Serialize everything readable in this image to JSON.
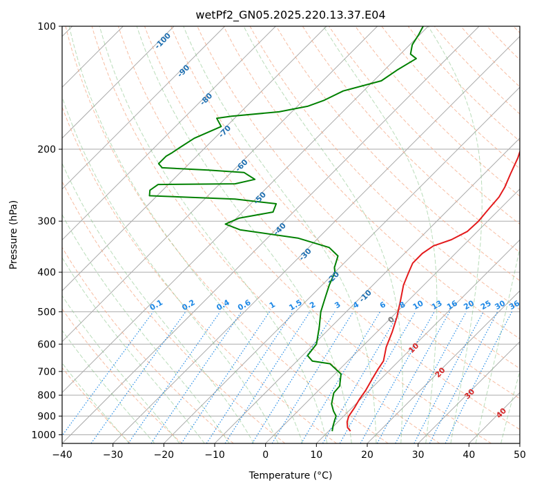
{
  "chart_data": {
    "type": "line",
    "subtype": "skew-t log-p diagram",
    "title": "wetPf2_GN05.2025.220.13.37.E04",
    "xlabel": "Temperature (°C)",
    "ylabel": "Pressure (hPa)",
    "xlim": [
      -40,
      50
    ],
    "ylim": [
      1050,
      100
    ],
    "y_scale": "log",
    "grid": true,
    "x_ticks": [
      -40,
      -30,
      -20,
      -10,
      0,
      10,
      20,
      30,
      40,
      50
    ],
    "y_ticks": [
      100,
      200,
      300,
      400,
      500,
      600,
      700,
      800,
      900,
      1000
    ],
    "x_tick_labels": [
      "−40",
      "−30",
      "−20",
      "−10",
      "0",
      "10",
      "20",
      "30",
      "40",
      "50"
    ],
    "y_tick_labels": [
      "100",
      "200",
      "300",
      "400",
      "500",
      "600",
      "700",
      "800",
      "900",
      "1000"
    ],
    "colors": {
      "temperature": "#e31a1c",
      "dewpoint": "#008000",
      "isotherm": "#aaaaaa",
      "dry_adiabat": "#f4a582",
      "moist_adiabat": "#80c080",
      "mixing_ratio": "#1e88e5",
      "isotherm_label": "#1f6fb0"
    },
    "series": [
      {
        "id": "temperature",
        "color": "#e31a1c",
        "points": [
          [
            14.3,
            980
          ],
          [
            13.0,
            960
          ],
          [
            11.8,
            930
          ],
          [
            11.0,
            900
          ],
          [
            10.5,
            860
          ],
          [
            9.8,
            820
          ],
          [
            9.3,
            780
          ],
          [
            8.3,
            730
          ],
          [
            7.5,
            690
          ],
          [
            7.0,
            660
          ],
          [
            4.8,
            610
          ],
          [
            3.0,
            560
          ],
          [
            1.0,
            515
          ],
          [
            -1.5,
            470
          ],
          [
            -4.0,
            430
          ],
          [
            -5.5,
            400
          ],
          [
            -6.5,
            380
          ],
          [
            -6.5,
            360
          ],
          [
            -5.8,
            345
          ],
          [
            -3.5,
            333
          ],
          [
            -2.0,
            318
          ],
          [
            -1.8,
            300
          ],
          [
            -2.2,
            280
          ],
          [
            -2.5,
            262
          ],
          [
            -3.3,
            248
          ],
          [
            -4.8,
            230
          ],
          [
            -6.5,
            210
          ],
          [
            -8.5,
            193
          ],
          [
            -12.2,
            165
          ],
          [
            -14.0,
            150
          ],
          [
            -17.0,
            135
          ],
          [
            -19.0,
            122
          ],
          [
            -20.2,
            111
          ],
          [
            -23.0,
            100
          ]
        ]
      },
      {
        "id": "dewpoint",
        "color": "#008000",
        "points": [
          [
            10.7,
            980
          ],
          [
            9.8,
            950
          ],
          [
            9.0,
            920
          ],
          [
            8.5,
            900
          ],
          [
            7.0,
            875
          ],
          [
            5.2,
            840
          ],
          [
            3.5,
            790
          ],
          [
            3.3,
            760
          ],
          [
            1.2,
            710
          ],
          [
            -3.0,
            670
          ],
          [
            -7.0,
            660
          ],
          [
            -9.0,
            640
          ],
          [
            -9.5,
            600
          ],
          [
            -12.3,
            545
          ],
          [
            -15.0,
            500
          ],
          [
            -17.0,
            460
          ],
          [
            -18.6,
            430
          ],
          [
            -20.0,
            400
          ],
          [
            -21.0,
            390
          ],
          [
            -22.6,
            365
          ],
          [
            -26.0,
            348
          ],
          [
            -34.0,
            330
          ],
          [
            -47.0,
            315
          ],
          [
            -51.0,
            305
          ],
          [
            -49.5,
            295
          ],
          [
            -44.0,
            285
          ],
          [
            -45.0,
            272
          ],
          [
            -54.0,
            265
          ],
          [
            -71.5,
            260
          ],
          [
            -72.5,
            252
          ],
          [
            -72.0,
            244
          ],
          [
            -57.0,
            243
          ],
          [
            -54.0,
            237
          ],
          [
            -57.5,
            228
          ],
          [
            -65.0,
            225
          ],
          [
            -74.5,
            222
          ],
          [
            -76.0,
            217
          ],
          [
            -76.0,
            208
          ],
          [
            -75.5,
            204
          ],
          [
            -75.0,
            198
          ],
          [
            -74.0,
            188
          ],
          [
            -71.0,
            176
          ],
          [
            -73.5,
            168
          ],
          [
            -71.0,
            166
          ],
          [
            -62.5,
            162
          ],
          [
            -58.0,
            157
          ],
          [
            -56.0,
            152
          ],
          [
            -54.0,
            144
          ],
          [
            -48.5,
            136
          ],
          [
            -47.5,
            128
          ],
          [
            -46.0,
            120
          ],
          [
            -48.0,
            117
          ],
          [
            -49.5,
            111
          ],
          [
            -50.2,
            105
          ],
          [
            -51.0,
            100
          ]
        ]
      }
    ],
    "isotherm_labels": [
      "-100",
      "-90",
      "-80",
      "-70",
      "-60",
      "-50",
      "-40",
      "-30",
      "-20",
      "-10"
    ],
    "mixing_ratio_labels": [
      "0.1",
      "0.2",
      "0.4",
      "0.6",
      "1",
      "1.5",
      "2",
      "3",
      "4",
      "6",
      "8",
      "10",
      "13",
      "16",
      "20",
      "25",
      "30",
      "36"
    ],
    "isotherm_labels_lower": [
      "0",
      "10",
      "20",
      "30",
      "40"
    ]
  }
}
